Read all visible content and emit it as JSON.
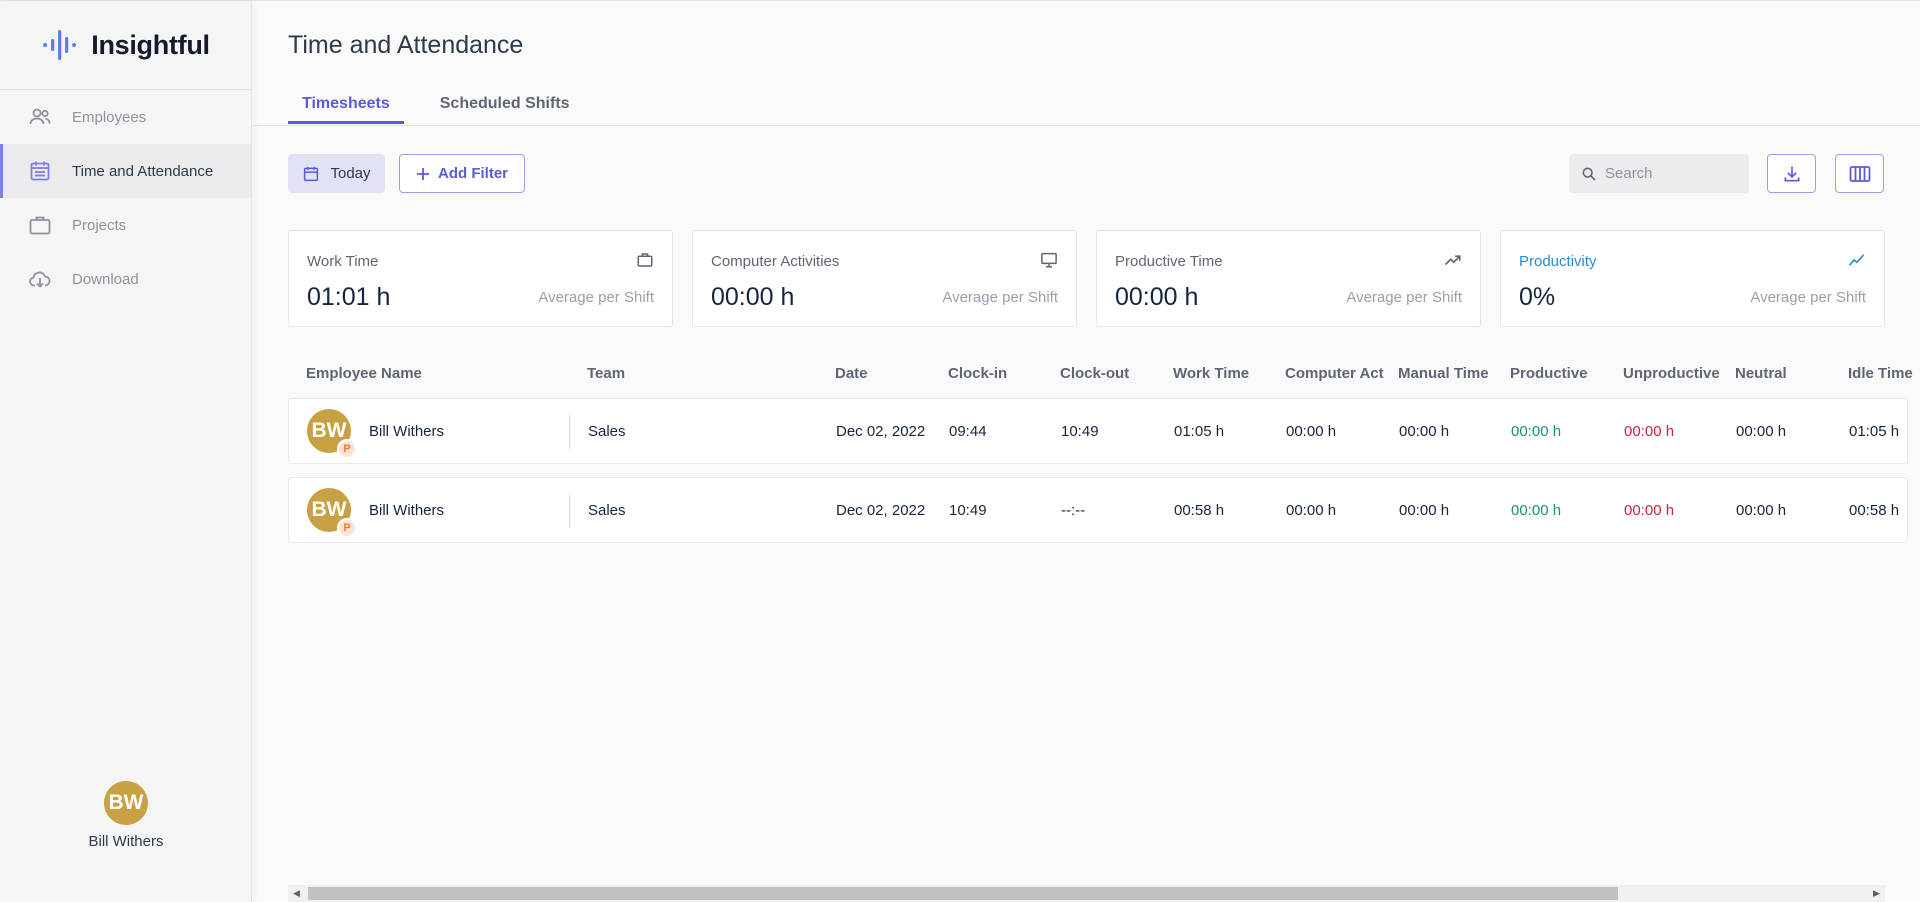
{
  "app": {
    "logo_text": "Insightful",
    "accent": "#5b5bd6"
  },
  "sidebar": {
    "items": [
      {
        "label": "Employees",
        "icon": "people-icon",
        "active": false
      },
      {
        "label": "Time and Attendance",
        "icon": "calendar-icon",
        "active": true
      },
      {
        "label": "Projects",
        "icon": "briefcase-icon",
        "active": false
      },
      {
        "label": "Download",
        "icon": "cloud-download-icon",
        "active": false
      }
    ],
    "user": {
      "initials": "BW",
      "name": "Bill Withers"
    }
  },
  "header": {
    "title": "Time and Attendance",
    "tabs": [
      {
        "label": "Timesheets",
        "active": true
      },
      {
        "label": "Scheduled Shifts",
        "active": false
      }
    ]
  },
  "toolbar": {
    "date_label": "Today",
    "add_filter_label": "Add Filter",
    "search_placeholder": "Search"
  },
  "cards": [
    {
      "label": "Work Time",
      "value": "01:01 h",
      "sub": "Average per Shift",
      "icon": "briefcase-icon"
    },
    {
      "label": "Computer Activities",
      "value": "00:00 h",
      "sub": "Average per Shift",
      "icon": "monitor-icon"
    },
    {
      "label": "Productive Time",
      "value": "00:00 h",
      "sub": "Average per Shift",
      "icon": "trending-up-icon"
    },
    {
      "label": "Productivity",
      "value": "0%",
      "sub": "Average per Shift",
      "icon": "line-chart-icon"
    }
  ],
  "table": {
    "columns": [
      "Employee Name",
      "Team",
      "Date",
      "Clock-in",
      "Clock-out",
      "Work Time",
      "Computer Act",
      "Manual Time",
      "Productive",
      "Unproductive",
      "Neutral",
      "Idle Time"
    ],
    "rows": [
      {
        "initials": "BW",
        "badge": "P",
        "name": "Bill Withers",
        "team": "Sales",
        "date": "Dec 02, 2022",
        "clock_in": "09:44",
        "clock_out": "10:49",
        "work_time": "01:05 h",
        "computer_act": "00:00 h",
        "manual_time": "00:00 h",
        "productive": "00:00 h",
        "unproductive": "00:00 h",
        "neutral": "00:00 h",
        "idle_time": "01:05 h"
      },
      {
        "initials": "BW",
        "badge": "P",
        "name": "Bill Withers",
        "team": "Sales",
        "date": "Dec 02, 2022",
        "clock_in": "10:49",
        "clock_out": "--:--",
        "work_time": "00:58 h",
        "computer_act": "00:00 h",
        "manual_time": "00:00 h",
        "productive": "00:00 h",
        "unproductive": "00:00 h",
        "neutral": "00:00 h",
        "idle_time": "00:58 h"
      }
    ]
  }
}
